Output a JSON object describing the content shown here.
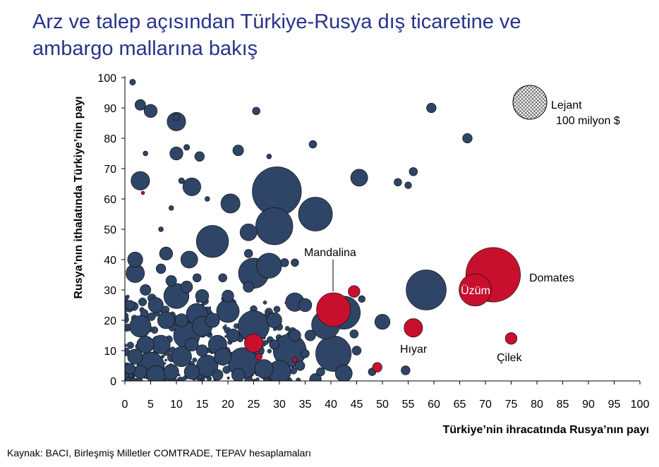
{
  "title": {
    "line1": "Arz ve talep açısından Türkiye-Rusya dış ticaretine ve",
    "line2": "ambargo mallarına bakış"
  },
  "source": "Kaynak: BACI, Birleşmiş Milletler COMTRADE, TEPAV hesaplamaları",
  "colors": {
    "title": "#27348b",
    "other": "#2f4567",
    "embargo": "#c8102e"
  },
  "chart_data": {
    "type": "scatter",
    "title": "Arz ve talep açısından Türkiye-Rusya dış ticaretine ve ambargo mallarına bakış",
    "xlabel": "Türkiye’nin ihracatında Rusya’nın payı",
    "ylabel": "Rusya’nın ithalatında Türkiye’nin payı",
    "xlim": [
      0,
      100
    ],
    "ylim": [
      0,
      100
    ],
    "xticks": [
      "0",
      "5",
      "10",
      "15",
      "20",
      "25",
      "30",
      "35",
      "40",
      "45",
      "50",
      "55",
      "60",
      "65",
      "70",
      "75",
      "80",
      "85",
      "90",
      "95",
      "100"
    ],
    "yticks": [
      "0",
      "10",
      "20",
      "30",
      "40",
      "50",
      "60",
      "70",
      "80",
      "90",
      "100"
    ],
    "grid": false,
    "bubble_size": "ihracat hacmi (milyon $)",
    "legend": {
      "position": "top-right",
      "title": "Lejant",
      "label": "100 milyon $",
      "value": 100
    },
    "series": [
      {
        "name": "",
        "color": "#2f4567",
        "points": [
          {
            "x": 29.5,
            "y": 62.5,
            "v": 210
          },
          {
            "x": 29,
            "y": 51,
            "v": 120
          },
          {
            "x": 37,
            "y": 55,
            "v": 100
          },
          {
            "x": 58.5,
            "y": 30,
            "v": 140
          },
          {
            "x": 17,
            "y": 46,
            "v": 90
          },
          {
            "x": 25,
            "y": 35.5,
            "v": 80
          },
          {
            "x": 28,
            "y": 38,
            "v": 55
          },
          {
            "x": 42.5,
            "y": 22.5,
            "v": 95
          },
          {
            "x": 39,
            "y": 18.5,
            "v": 70
          },
          {
            "x": 40.5,
            "y": 9,
            "v": 110
          },
          {
            "x": 32,
            "y": 10,
            "v": 95
          },
          {
            "x": 25,
            "y": 18,
            "v": 85
          },
          {
            "x": 23,
            "y": 6,
            "v": 80
          },
          {
            "x": 20,
            "y": 23,
            "v": 45
          },
          {
            "x": 12,
            "y": 15,
            "v": 60
          },
          {
            "x": 10,
            "y": 28,
            "v": 55
          },
          {
            "x": 3,
            "y": 18,
            "v": 40
          },
          {
            "x": 5,
            "y": 5,
            "v": 65
          },
          {
            "x": 3,
            "y": 66,
            "v": 30
          },
          {
            "x": 10,
            "y": 85.5,
            "v": 30
          },
          {
            "x": 13,
            "y": 64,
            "v": 28
          },
          {
            "x": 20.5,
            "y": 58.5,
            "v": 32
          },
          {
            "x": 24,
            "y": 49,
            "v": 25
          },
          {
            "x": 45.5,
            "y": 67,
            "v": 25
          },
          {
            "x": 33,
            "y": 26,
            "v": 30
          },
          {
            "x": 50,
            "y": 19.5,
            "v": 20
          },
          {
            "x": 2,
            "y": 35.5,
            "v": 30
          },
          {
            "x": 12.5,
            "y": 40,
            "v": 25
          },
          {
            "x": 8,
            "y": 42,
            "v": 15
          },
          {
            "x": 2,
            "y": 40,
            "v": 20
          },
          {
            "x": 14,
            "y": 22,
            "v": 40
          },
          {
            "x": 15,
            "y": 18,
            "v": 35
          },
          {
            "x": 7,
            "y": 12,
            "v": 30
          },
          {
            "x": 18,
            "y": 12,
            "v": 30
          },
          {
            "x": 29,
            "y": 20,
            "v": 20
          },
          {
            "x": 20,
            "y": 28,
            "v": 12
          },
          {
            "x": 24,
            "y": 31,
            "v": 10
          },
          {
            "x": 35,
            "y": 25,
            "v": 15
          },
          {
            "x": 42.5,
            "y": 2.5,
            "v": 25
          },
          {
            "x": 10,
            "y": 75,
            "v": 15
          },
          {
            "x": 5,
            "y": 89,
            "v": 15
          },
          {
            "x": 3,
            "y": 91,
            "v": 10
          },
          {
            "x": 14.5,
            "y": 74,
            "v": 8
          },
          {
            "x": 22,
            "y": 76,
            "v": 10
          },
          {
            "x": 59.5,
            "y": 90,
            "v": 8
          },
          {
            "x": 66.5,
            "y": 80,
            "v": 8
          },
          {
            "x": 25.5,
            "y": 89,
            "v": 5
          },
          {
            "x": 36.5,
            "y": 78,
            "v": 5
          },
          {
            "x": 56,
            "y": 69,
            "v": 6
          },
          {
            "x": 53,
            "y": 65.5,
            "v": 5
          },
          {
            "x": 55,
            "y": 64.5,
            "v": 4
          },
          {
            "x": 45,
            "y": 10,
            "v": 7
          },
          {
            "x": 54.5,
            "y": 3.5,
            "v": 7
          },
          {
            "x": 48,
            "y": 3,
            "v": 5
          },
          {
            "x": 37,
            "y": 0.5,
            "v": 12
          },
          {
            "x": 30,
            "y": 3,
            "v": 45
          },
          {
            "x": 27,
            "y": 4,
            "v": 30
          },
          {
            "x": 16,
            "y": 5,
            "v": 40
          },
          {
            "x": 11,
            "y": 8,
            "v": 35
          },
          {
            "x": 19,
            "y": 8,
            "v": 25
          },
          {
            "x": 8,
            "y": 20,
            "v": 25
          },
          {
            "x": 6,
            "y": 25,
            "v": 20
          },
          {
            "x": 4,
            "y": 12,
            "v": 25
          },
          {
            "x": 15,
            "y": 28,
            "v": 15
          },
          {
            "x": 17,
            "y": 20,
            "v": 18
          },
          {
            "x": 13,
            "y": 3,
            "v": 20
          },
          {
            "x": 21,
            "y": 15,
            "v": 15
          },
          {
            "x": 33,
            "y": 15,
            "v": 12
          },
          {
            "x": 36,
            "y": 15,
            "v": 10
          },
          {
            "x": 44.5,
            "y": 15.5,
            "v": 6
          },
          {
            "x": 46,
            "y": 27,
            "v": 4
          },
          {
            "x": 31,
            "y": 39,
            "v": 6
          },
          {
            "x": 33,
            "y": 39,
            "v": 5
          },
          {
            "x": 19,
            "y": 34,
            "v": 6
          },
          {
            "x": 24,
            "y": 42,
            "v": 6
          },
          {
            "x": 7,
            "y": 37,
            "v": 8
          },
          {
            "x": 4,
            "y": 30,
            "v": 10
          },
          {
            "x": 9,
            "y": 33,
            "v": 10
          },
          {
            "x": 1,
            "y": 25,
            "v": 8
          },
          {
            "x": 2,
            "y": 8,
            "v": 20
          },
          {
            "x": 6,
            "y": 2,
            "v": 30
          },
          {
            "x": 9,
            "y": 3,
            "v": 20
          },
          {
            "x": 3,
            "y": 3,
            "v": 15
          },
          {
            "x": 1,
            "y": 4,
            "v": 10
          },
          {
            "x": 11,
            "y": 20,
            "v": 15
          },
          {
            "x": 13,
            "y": 12,
            "v": 15
          },
          {
            "x": 22,
            "y": 2,
            "v": 15
          },
          {
            "x": 26,
            "y": 10,
            "v": 10
          },
          {
            "x": 29,
            "y": 12,
            "v": 8
          },
          {
            "x": 18,
            "y": 2,
            "v": 10
          },
          {
            "x": 15,
            "y": 10,
            "v": 12
          },
          {
            "x": 34,
            "y": 5,
            "v": 8
          },
          {
            "x": 35,
            "y": 9,
            "v": 6
          },
          {
            "x": 38,
            "y": 3,
            "v": 6
          },
          {
            "x": 12,
            "y": 31,
            "v": 12
          },
          {
            "x": 14,
            "y": 34,
            "v": 6
          },
          {
            "x": 11,
            "y": 66,
            "v": 3
          },
          {
            "x": 4,
            "y": 75,
            "v": 2
          },
          {
            "x": 9,
            "y": 57,
            "v": 2
          },
          {
            "x": 7,
            "y": 50,
            "v": 2
          },
          {
            "x": 16,
            "y": 60,
            "v": 2
          },
          {
            "x": 28,
            "y": 74,
            "v": 2
          },
          {
            "x": 1.5,
            "y": 98.5,
            "v": 3
          },
          {
            "x": 10,
            "y": 87,
            "v": 4
          },
          {
            "x": 12,
            "y": 77,
            "v": 3
          }
        ]
      },
      {
        "name": "",
        "color": "#c8102e",
        "points": [
          {
            "x": 71.5,
            "y": 35,
            "v": 260,
            "label": "Domates"
          },
          {
            "x": 68,
            "y": 30,
            "v": 90,
            "label": "Üzüm"
          },
          {
            "x": 40.5,
            "y": 23.5,
            "v": 100,
            "label": "Mandalina"
          },
          {
            "x": 56,
            "y": 17.5,
            "v": 30,
            "label": "Hıyar"
          },
          {
            "x": 75,
            "y": 14,
            "v": 12,
            "label": "Çilek"
          },
          {
            "x": 25,
            "y": 12.5,
            "v": 30
          },
          {
            "x": 44.5,
            "y": 29.5,
            "v": 12
          },
          {
            "x": 49,
            "y": 4.5,
            "v": 8
          },
          {
            "x": 3.5,
            "y": 62,
            "v": 1
          },
          {
            "x": 26,
            "y": 8,
            "v": 4
          },
          {
            "x": 33,
            "y": 7,
            "v": 2
          }
        ]
      }
    ],
    "labels": {
      "mandalina": "Mandalina",
      "uzum": "Üzüm",
      "domates": "Domates",
      "hiyar": "Hıyar",
      "cilek": "Çilek"
    }
  }
}
